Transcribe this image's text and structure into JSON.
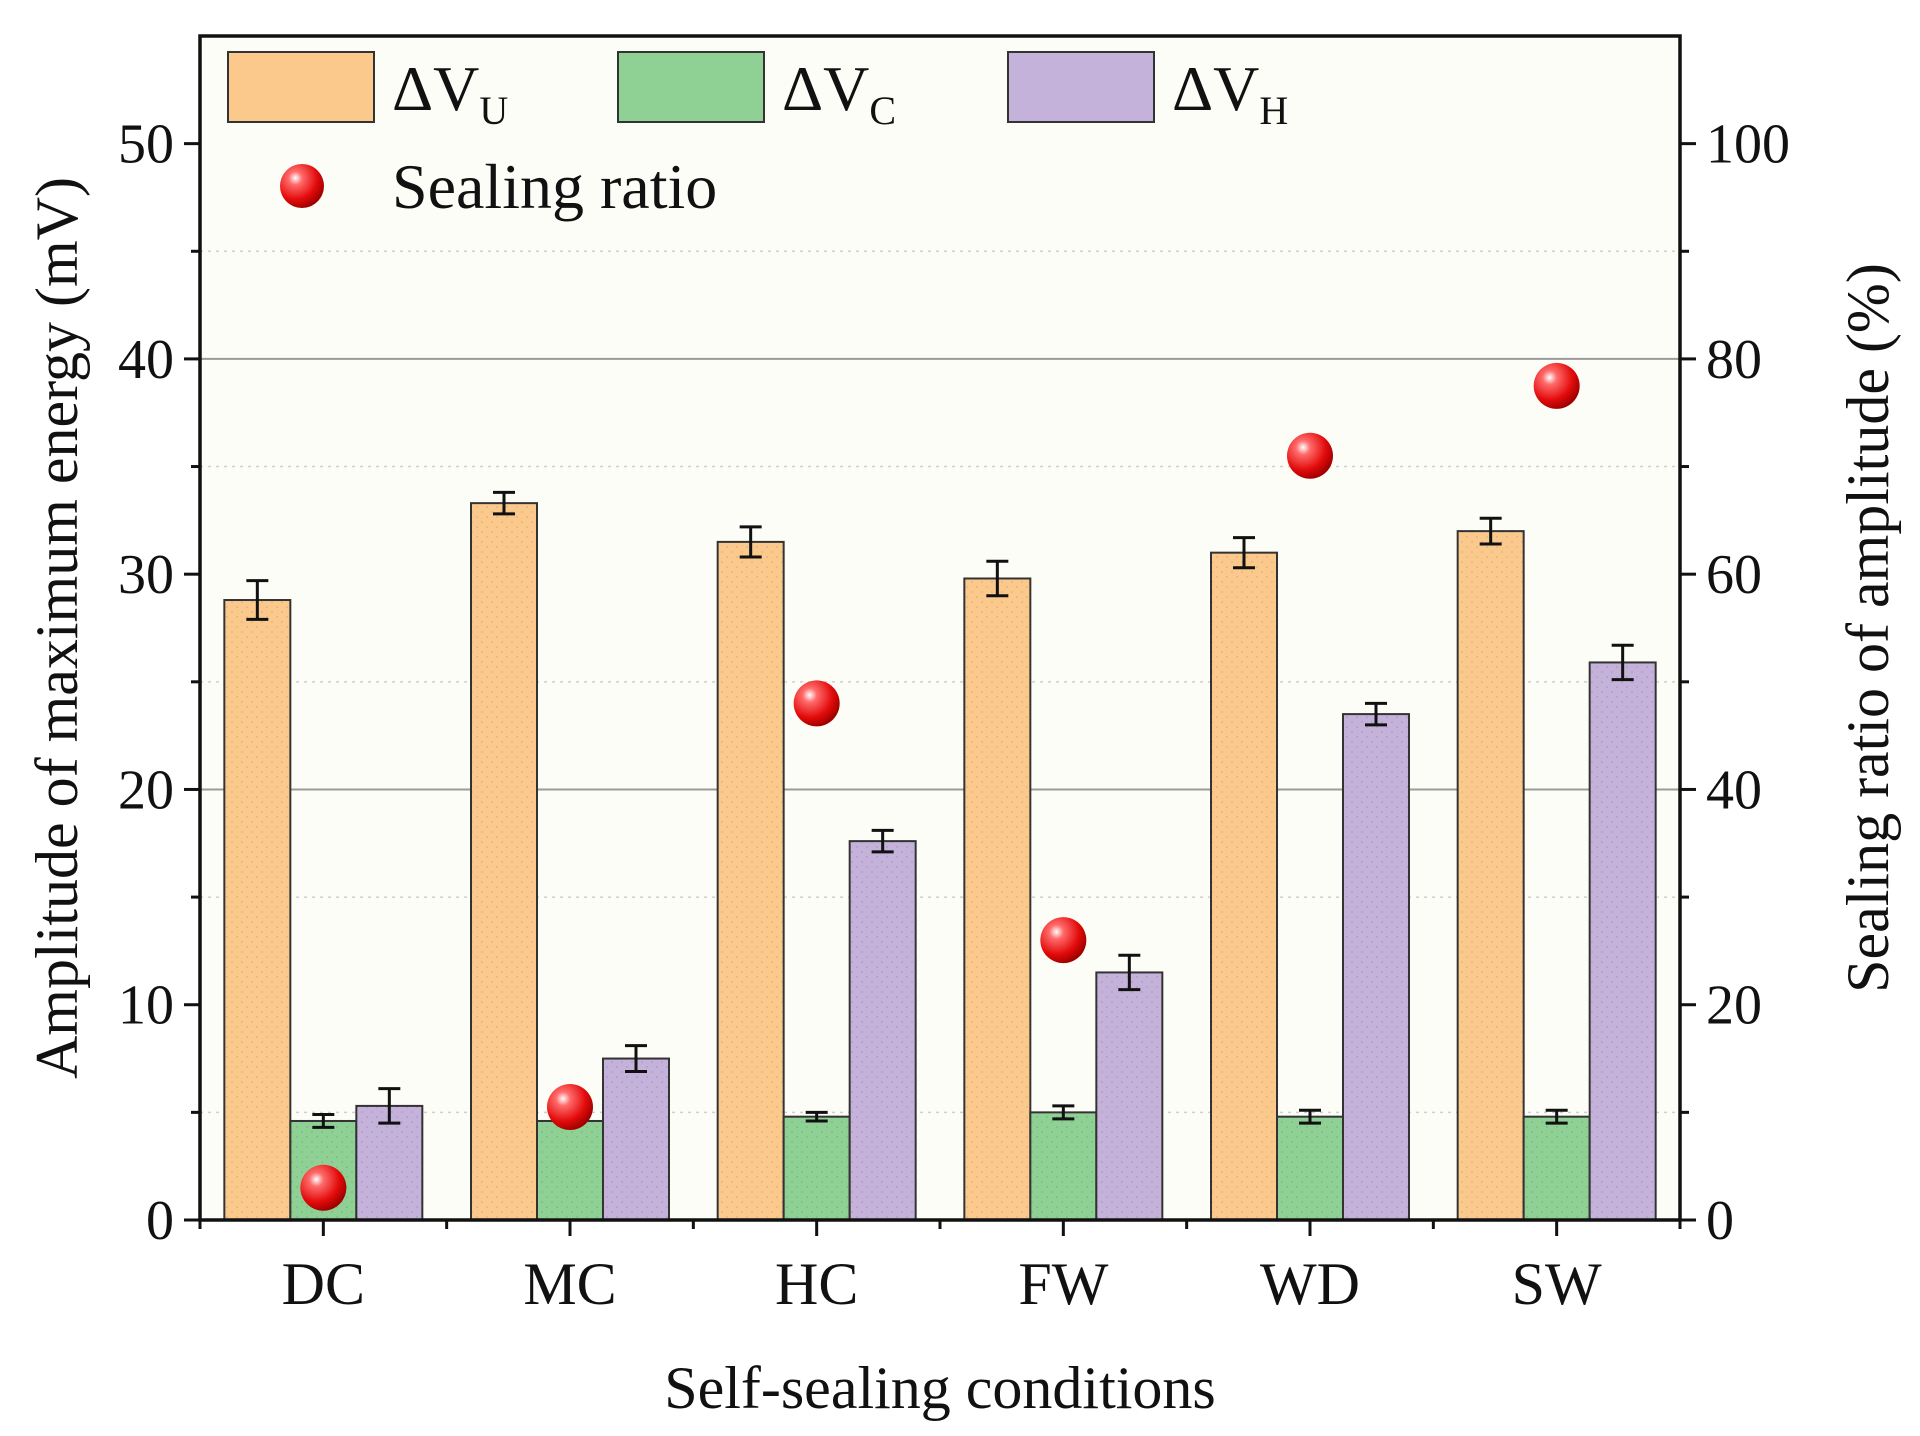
{
  "chart_data": {
    "type": "bar",
    "xlabel": "Self-sealing conditions",
    "ylabel": "Amplitude of maximum energy (mV)",
    "y2label": "Sealing ratio of amplitude (%)",
    "categories": [
      "DC",
      "MC",
      "HC",
      "FW",
      "WD",
      "SW"
    ],
    "ylim": [
      0,
      55
    ],
    "y2lim": [
      0,
      110
    ],
    "yticks": [
      0,
      10,
      20,
      30,
      40,
      50
    ],
    "y2ticks": [
      0,
      20,
      40,
      60,
      80,
      100
    ],
    "series": [
      {
        "name": "ΔV",
        "subscript": "U",
        "color": "#fcc98d",
        "values": [
          28.8,
          33.3,
          31.5,
          29.8,
          31.0,
          32.0
        ],
        "errors": [
          0.9,
          0.5,
          0.7,
          0.8,
          0.7,
          0.6
        ]
      },
      {
        "name": "ΔV",
        "subscript": "C",
        "color": "#8fd195",
        "values": [
          4.6,
          4.6,
          4.8,
          5.0,
          4.8,
          4.8
        ],
        "errors": [
          0.3,
          0.0,
          0.2,
          0.3,
          0.3,
          0.3
        ]
      },
      {
        "name": "ΔV",
        "subscript": "H",
        "color": "#c4b2da",
        "values": [
          5.3,
          7.5,
          17.6,
          11.5,
          23.5,
          25.9
        ],
        "errors": [
          0.8,
          0.6,
          0.5,
          0.8,
          0.5,
          0.8
        ]
      }
    ],
    "scatter_series": {
      "name": "Sealing ratio",
      "axis": "right",
      "color": "#e80f0f",
      "values": [
        3,
        10.5,
        48,
        26,
        71,
        77.5
      ]
    },
    "legend_position": "top-left",
    "grid": "major horizontal lines at y = 20 and 40; dotted minor lines"
  }
}
